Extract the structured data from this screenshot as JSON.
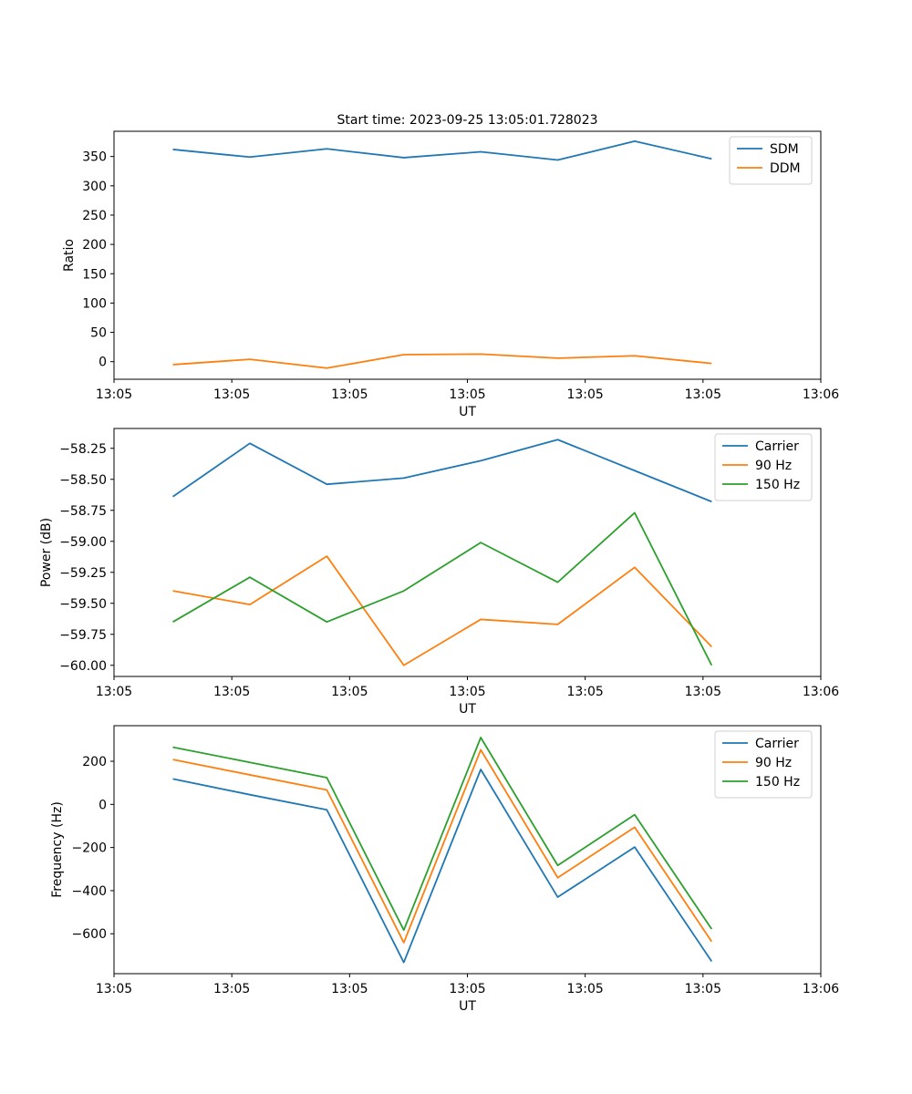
{
  "chart_data": [
    {
      "type": "line",
      "title": "Start time: 2023-09-25 13:05:01.728023",
      "xlabel": "UT",
      "ylabel": "Ratio",
      "xlim": [
        0,
        9
      ],
      "x_ticks": [
        0,
        1.5,
        3,
        4.5,
        6,
        7.5,
        9
      ],
      "x_tick_labels": [
        "13:05",
        "13:05",
        "13:05",
        "13:05",
        "13:05",
        "13:05",
        "13:06"
      ],
      "ylim": [
        -30,
        393
      ],
      "y_ticks": [
        0,
        50,
        100,
        150,
        200,
        250,
        300,
        350
      ],
      "y_tick_labels": [
        "0",
        "50",
        "100",
        "150",
        "200",
        "250",
        "300",
        "350"
      ],
      "legend_position": "top-right",
      "x": [
        0.75,
        1.73,
        2.71,
        3.69,
        4.67,
        5.65,
        6.63,
        7.61
      ],
      "series": [
        {
          "name": "SDM",
          "color": "#1f77b4",
          "values": [
            362,
            349,
            363,
            348,
            358,
            344,
            376,
            346
          ]
        },
        {
          "name": "DDM",
          "color": "#ff7f0e",
          "values": [
            -5,
            4,
            -11,
            12,
            13,
            6,
            10,
            -3
          ]
        }
      ]
    },
    {
      "type": "line",
      "title": "",
      "xlabel": "UT",
      "ylabel": "Power (dB)",
      "xlim": [
        0,
        9
      ],
      "x_ticks": [
        0,
        1.5,
        3,
        4.5,
        6,
        7.5,
        9
      ],
      "x_tick_labels": [
        "13:05",
        "13:05",
        "13:05",
        "13:05",
        "13:05",
        "13:05",
        "13:06"
      ],
      "ylim": [
        -60.09,
        -58.09
      ],
      "y_ticks": [
        -58.25,
        -58.5,
        -58.75,
        -59.0,
        -59.25,
        -59.5,
        -59.75,
        -60.0
      ],
      "y_tick_labels": [
        "−58.25",
        "−58.50",
        "−58.75",
        "−59.00",
        "−59.25",
        "−59.50",
        "−59.75",
        "−60.00"
      ],
      "legend_position": "top-right",
      "x": [
        0.75,
        1.73,
        2.71,
        3.69,
        4.67,
        5.65,
        6.63,
        7.61
      ],
      "series": [
        {
          "name": "Carrier",
          "color": "#1f77b4",
          "values": [
            -58.64,
            -58.21,
            -58.54,
            -58.49,
            -58.35,
            -58.18,
            -58.43,
            -58.68
          ]
        },
        {
          "name": "90 Hz",
          "color": "#ff7f0e",
          "values": [
            -59.4,
            -59.51,
            -59.12,
            -60.0,
            -59.63,
            -59.67,
            -59.21,
            -59.85
          ]
        },
        {
          "name": "150 Hz",
          "color": "#2ca02c",
          "values": [
            -59.65,
            -59.29,
            -59.65,
            -59.4,
            -59.01,
            -59.33,
            -58.77,
            -60.0
          ]
        }
      ]
    },
    {
      "type": "line",
      "title": "",
      "xlabel": "UT",
      "ylabel": "Frequency (Hz)",
      "xlim": [
        0,
        9
      ],
      "x_ticks": [
        0,
        1.5,
        3,
        4.5,
        6,
        7.5,
        9
      ],
      "x_tick_labels": [
        "13:05",
        "13:05",
        "13:05",
        "13:05",
        "13:05",
        "13:05",
        "13:06"
      ],
      "ylim": [
        -785,
        365
      ],
      "y_ticks": [
        200,
        0,
        -200,
        -400,
        -600
      ],
      "y_tick_labels": [
        "200",
        "0",
        "−200",
        "−400",
        "−600"
      ],
      "legend_position": "top-right",
      "x": [
        0.75,
        1.73,
        2.71,
        3.69,
        4.67,
        5.65,
        6.63,
        7.61
      ],
      "series": [
        {
          "name": "Carrier",
          "color": "#1f77b4",
          "values": [
            118,
            45,
            -25,
            -733,
            162,
            -430,
            -198,
            -728
          ]
        },
        {
          "name": "90 Hz",
          "color": "#ff7f0e",
          "values": [
            208,
            137,
            67,
            -641,
            253,
            -340,
            -106,
            -636
          ]
        },
        {
          "name": "150 Hz",
          "color": "#2ca02c",
          "values": [
            265,
            195,
            124,
            -583,
            310,
            -283,
            -48,
            -578
          ]
        }
      ]
    }
  ]
}
